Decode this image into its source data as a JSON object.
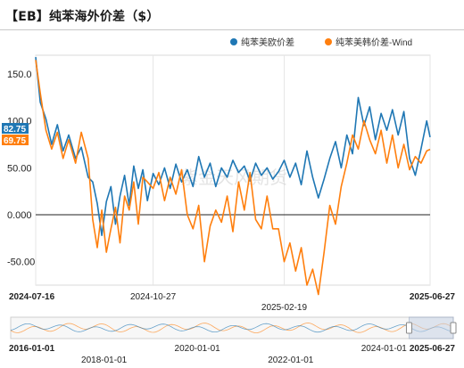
{
  "title": "【EB】纯苯海外价差（$）",
  "watermark": "紫金天风期货",
  "legend": [
    {
      "label": "纯苯美欧价差",
      "color": "#1f77b4"
    },
    {
      "label": "纯苯美韩价差-Wind",
      "color": "#ff7f0e"
    }
  ],
  "current_values": [
    {
      "label": "82.75",
      "color": "#1f77b4"
    },
    {
      "label": "69.75",
      "color": "#ff7f0e"
    }
  ],
  "chart_data": {
    "type": "line",
    "ylim": [
      -75,
      170
    ],
    "y_ticks": [
      "150.0",
      "100.0",
      "50.00",
      "0.000",
      "-50.00"
    ],
    "y_tick_values": [
      150,
      100,
      50,
      0,
      -50
    ],
    "xlim": [
      "2024-07-16",
      "2025-06-27"
    ],
    "x_tick_labels": [
      {
        "date": "2024-07-16",
        "label": "2024-07-16"
      },
      {
        "date": "2024-10-27",
        "label": "2024-10-27"
      },
      {
        "date": "2025-02-19",
        "label": "2025-02-19"
      },
      {
        "date": "2025-06-27",
        "label": "2025-06-27"
      }
    ],
    "series": [
      {
        "name": "纯苯美欧价差",
        "color": "#1f77b4",
        "points": [
          [
            "2024-07-16",
            168
          ],
          [
            "2024-07-20",
            120
          ],
          [
            "2024-07-25",
            102
          ],
          [
            "2024-07-30",
            75
          ],
          [
            "2024-08-04",
            96
          ],
          [
            "2024-08-09",
            68
          ],
          [
            "2024-08-14",
            85
          ],
          [
            "2024-08-20",
            60
          ],
          [
            "2024-08-25",
            72
          ],
          [
            "2024-08-31",
            40
          ],
          [
            "2024-09-04",
            35
          ],
          [
            "2024-09-08",
            12
          ],
          [
            "2024-09-12",
            -22
          ],
          [
            "2024-09-16",
            14
          ],
          [
            "2024-09-20",
            30
          ],
          [
            "2024-09-24",
            -10
          ],
          [
            "2024-09-28",
            20
          ],
          [
            "2024-10-02",
            42
          ],
          [
            "2024-10-06",
            10
          ],
          [
            "2024-10-10",
            52
          ],
          [
            "2024-10-14",
            28
          ],
          [
            "2024-10-18",
            48
          ],
          [
            "2024-10-22",
            15
          ],
          [
            "2024-10-27",
            44
          ],
          [
            "2024-11-01",
            32
          ],
          [
            "2024-11-06",
            50
          ],
          [
            "2024-11-11",
            28
          ],
          [
            "2024-11-16",
            54
          ],
          [
            "2024-11-21",
            35
          ],
          [
            "2024-11-26",
            48
          ],
          [
            "2024-12-01",
            30
          ],
          [
            "2024-12-06",
            62
          ],
          [
            "2024-12-11",
            40
          ],
          [
            "2024-12-16",
            55
          ],
          [
            "2024-12-21",
            30
          ],
          [
            "2024-12-26",
            50
          ],
          [
            "2024-12-31",
            40
          ],
          [
            "2025-01-05",
            58
          ],
          [
            "2025-01-10",
            45
          ],
          [
            "2025-01-15",
            52
          ],
          [
            "2025-01-20",
            36
          ],
          [
            "2025-01-25",
            55
          ],
          [
            "2025-01-30",
            42
          ],
          [
            "2025-02-04",
            50
          ],
          [
            "2025-02-09",
            38
          ],
          [
            "2025-02-14",
            46
          ],
          [
            "2025-02-19",
            58
          ],
          [
            "2025-02-24",
            40
          ],
          [
            "2025-03-01",
            55
          ],
          [
            "2025-03-06",
            32
          ],
          [
            "2025-03-11",
            68
          ],
          [
            "2025-03-16",
            40
          ],
          [
            "2025-03-21",
            18
          ],
          [
            "2025-03-26",
            38
          ],
          [
            "2025-03-31",
            60
          ],
          [
            "2025-04-05",
            78
          ],
          [
            "2025-04-10",
            50
          ],
          [
            "2025-04-15",
            85
          ],
          [
            "2025-04-20",
            65
          ],
          [
            "2025-04-25",
            125
          ],
          [
            "2025-04-30",
            95
          ],
          [
            "2025-05-05",
            115
          ],
          [
            "2025-05-10",
            80
          ],
          [
            "2025-05-15",
            108
          ],
          [
            "2025-05-20",
            90
          ],
          [
            "2025-05-25",
            112
          ],
          [
            "2025-05-30",
            85
          ],
          [
            "2025-06-04",
            110
          ],
          [
            "2025-06-09",
            60
          ],
          [
            "2025-06-14",
            42
          ],
          [
            "2025-06-19",
            70
          ],
          [
            "2025-06-24",
            100
          ],
          [
            "2025-06-27",
            82.75
          ]
        ]
      },
      {
        "name": "纯苯美韩价差-Wind",
        "color": "#ff7f0e",
        "points": [
          [
            "2024-07-16",
            165
          ],
          [
            "2024-07-20",
            130
          ],
          [
            "2024-07-25",
            90
          ],
          [
            "2024-07-30",
            70
          ],
          [
            "2024-08-04",
            88
          ],
          [
            "2024-08-09",
            60
          ],
          [
            "2024-08-14",
            80
          ],
          [
            "2024-08-20",
            55
          ],
          [
            "2024-08-25",
            88
          ],
          [
            "2024-08-31",
            60
          ],
          [
            "2024-09-04",
            -5
          ],
          [
            "2024-09-08",
            -35
          ],
          [
            "2024-09-12",
            5
          ],
          [
            "2024-09-16",
            -40
          ],
          [
            "2024-09-20",
            -15
          ],
          [
            "2024-09-24",
            8
          ],
          [
            "2024-09-28",
            -30
          ],
          [
            "2024-10-02",
            20
          ],
          [
            "2024-10-06",
            5
          ],
          [
            "2024-10-10",
            35
          ],
          [
            "2024-10-14",
            -10
          ],
          [
            "2024-10-18",
            40
          ],
          [
            "2024-10-22",
            35
          ],
          [
            "2024-10-27",
            28
          ],
          [
            "2024-11-01",
            45
          ],
          [
            "2024-11-06",
            15
          ],
          [
            "2024-11-11",
            40
          ],
          [
            "2024-11-16",
            22
          ],
          [
            "2024-11-21",
            48
          ],
          [
            "2024-11-26",
            0
          ],
          [
            "2024-12-01",
            -15
          ],
          [
            "2024-12-06",
            10
          ],
          [
            "2024-12-11",
            -50
          ],
          [
            "2024-12-16",
            -12
          ],
          [
            "2024-12-21",
            5
          ],
          [
            "2024-12-26",
            -8
          ],
          [
            "2024-12-31",
            20
          ],
          [
            "2025-01-05",
            -18
          ],
          [
            "2025-01-10",
            35
          ],
          [
            "2025-01-15",
            5
          ],
          [
            "2025-01-20",
            45
          ],
          [
            "2025-01-25",
            -5
          ],
          [
            "2025-01-30",
            -15
          ],
          [
            "2025-02-04",
            20
          ],
          [
            "2025-02-09",
            -15
          ],
          [
            "2025-02-14",
            -15
          ],
          [
            "2025-02-19",
            -50
          ],
          [
            "2025-02-24",
            -30
          ],
          [
            "2025-03-01",
            -60
          ],
          [
            "2025-03-06",
            -35
          ],
          [
            "2025-03-11",
            -75
          ],
          [
            "2025-03-16",
            -58
          ],
          [
            "2025-03-21",
            -85
          ],
          [
            "2025-03-26",
            -40
          ],
          [
            "2025-03-31",
            10
          ],
          [
            "2025-04-05",
            -10
          ],
          [
            "2025-04-10",
            30
          ],
          [
            "2025-04-15",
            55
          ],
          [
            "2025-04-20",
            85
          ],
          [
            "2025-04-25",
            70
          ],
          [
            "2025-04-30",
            100
          ],
          [
            "2025-05-05",
            80
          ],
          [
            "2025-05-10",
            65
          ],
          [
            "2025-05-15",
            90
          ],
          [
            "2025-05-20",
            55
          ],
          [
            "2025-05-25",
            85
          ],
          [
            "2025-05-30",
            50
          ],
          [
            "2025-06-04",
            75
          ],
          [
            "2025-06-09",
            48
          ],
          [
            "2025-06-14",
            62
          ],
          [
            "2025-06-19",
            55
          ],
          [
            "2025-06-24",
            68
          ],
          [
            "2025-06-27",
            69.75
          ]
        ]
      }
    ]
  },
  "navigator": {
    "x_start": "2016-01-01",
    "x_end": "2025-06-27",
    "window_start": "2024-07-16",
    "window_end": "2025-06-27",
    "labels": [
      {
        "date": "2016-01-01",
        "label": "2016-01-01",
        "row": 1
      },
      {
        "date": "2018-01-01",
        "label": "2018-01-01",
        "row": 2
      },
      {
        "date": "2020-01-01",
        "label": "2020-01-01",
        "row": 1
      },
      {
        "date": "2022-01-01",
        "label": "2022-01-01",
        "row": 2
      },
      {
        "date": "2024-01-01",
        "label": "2024-01-01",
        "row": 1
      },
      {
        "date": "2025-06-27",
        "label": "2025-06-27",
        "row": 1
      }
    ]
  }
}
